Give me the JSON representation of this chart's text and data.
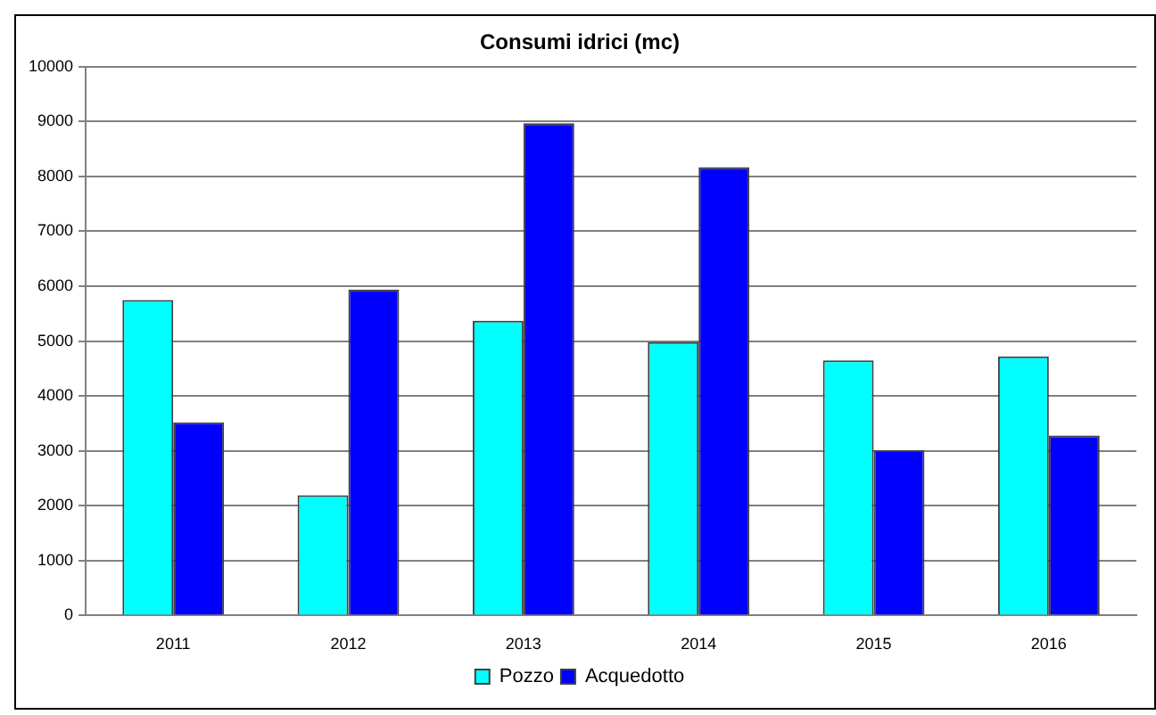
{
  "chart_data": {
    "type": "bar",
    "title": "Consumi idrici (mc)",
    "categories": [
      "2011",
      "2012",
      "2013",
      "2014",
      "2015",
      "2016"
    ],
    "series": [
      {
        "name": "Pozzo",
        "color": "#00ffff",
        "values": [
          5750,
          2190,
          5370,
          4980,
          4650,
          4720
        ]
      },
      {
        "name": "Acquedotto",
        "color": "#0000ff",
        "values": [
          3520,
          5940,
          8970,
          8170,
          3010,
          3280
        ]
      }
    ],
    "ylim": [
      0,
      10000
    ],
    "yticks": [
      0,
      1000,
      2000,
      3000,
      4000,
      5000,
      6000,
      7000,
      8000,
      9000,
      10000
    ],
    "grid": "y",
    "legend": "bottom"
  }
}
